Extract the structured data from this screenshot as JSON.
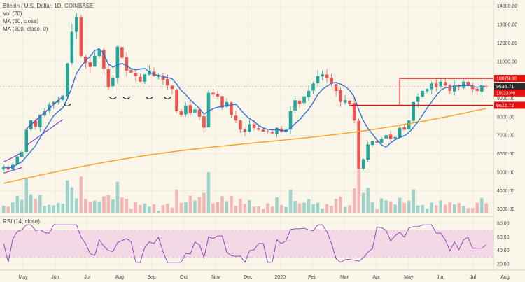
{
  "chart_data": {
    "type": "candlestick",
    "title": "Bitcoin / U.S. Dollar, 1D, COINBASE",
    "indicators": [
      "Vol (20)",
      "MA (50, close)",
      "MA (200, close, 0)"
    ],
    "rsi_label": "RSI (14, close)",
    "x_labels": [
      "May",
      "Jun",
      "Jul",
      "Aug",
      "Sep",
      "Oct",
      "Nov",
      "Dec",
      "2020",
      "Feb",
      "Mar",
      "Apr",
      "May",
      "Jun",
      "Jul",
      "Aug"
    ],
    "price_ticks": [
      3000,
      4000,
      5000,
      6000,
      7000,
      8000,
      9000,
      10000,
      11000,
      12000,
      13000,
      14000
    ],
    "price_tick_labels": [
      "3000.00",
      "4000.00",
      "5000.00",
      "6000.00",
      "7000.00",
      "8000.00",
      "9000.00",
      "10000.00",
      "11000.00",
      "12000.00",
      "13000.00",
      "14000.00"
    ],
    "rsi_ticks": [
      20,
      40,
      60,
      80
    ],
    "rsi_tick_labels": [
      "20.00",
      "40.00",
      "60.00",
      "80.00"
    ],
    "price_ylim": [
      2800,
      14100
    ],
    "rsi_ylim": [
      13,
      88
    ],
    "rsi_band": [
      30,
      70
    ],
    "close": [
      5300,
      5150,
      5400,
      5850,
      6100,
      7300,
      7800,
      7450,
      8100,
      8300,
      8650,
      8800,
      8900,
      9150,
      10900,
      12600,
      13400,
      11300,
      10900,
      10700,
      11300,
      11600,
      10600,
      9600,
      10100,
      11800,
      11200,
      10500,
      10400,
      10200,
      9900,
      10300,
      10500,
      10200,
      10200,
      10000,
      9700,
      9500,
      8300,
      8100,
      8600,
      8200,
      8400,
      8000,
      7400,
      9300,
      9200,
      9100,
      8500,
      8800,
      8100,
      7800,
      7300,
      7200,
      7600,
      7400,
      7300,
      7200,
      7200,
      7100,
      7400,
      7200,
      7300,
      8300,
      8900,
      8700,
      9100,
      9400,
      9800,
      10200,
      10300,
      10100,
      9800,
      9400,
      8800,
      8900,
      8700,
      7800,
      5200,
      5700,
      6500,
      6700,
      6600,
      6800,
      7000,
      6800,
      6900,
      7400,
      7300,
      7800,
      8800,
      9100,
      9400,
      9500,
      9800,
      9600,
      9900,
      9700,
      9400,
      9700,
      9600,
      9900,
      9700,
      9500,
      9400,
      9700,
      9650
    ],
    "levels": {
      "resistance": 10079,
      "current": 9636.71,
      "support": 8622.72
    },
    "price_tags": [
      {
        "label": "10079.00",
        "value": 10079,
        "color": "#e8110f"
      },
      {
        "label": "9636.71",
        "value": 9636.71,
        "color": "#2b2b2b"
      },
      {
        "label": "19:33:46",
        "value": 9290,
        "color": "#e8110f"
      },
      {
        "label": "8622.72",
        "value": 8622.72,
        "color": "#e8110f"
      }
    ],
    "colors": {
      "up": "#26a69a",
      "down": "#ef5350",
      "ma50": "#2f72d6",
      "ma200": "#f6a21e",
      "rsi": "#8e35b6",
      "rsi_band": "#f0d3e4",
      "rect": "#e8110f",
      "channel": "#7b3ad3",
      "vol_up": "#9ed3cc",
      "vol_down": "#f2b6b4",
      "bg": "#fbf6ea",
      "grid": "#ece6da"
    }
  }
}
